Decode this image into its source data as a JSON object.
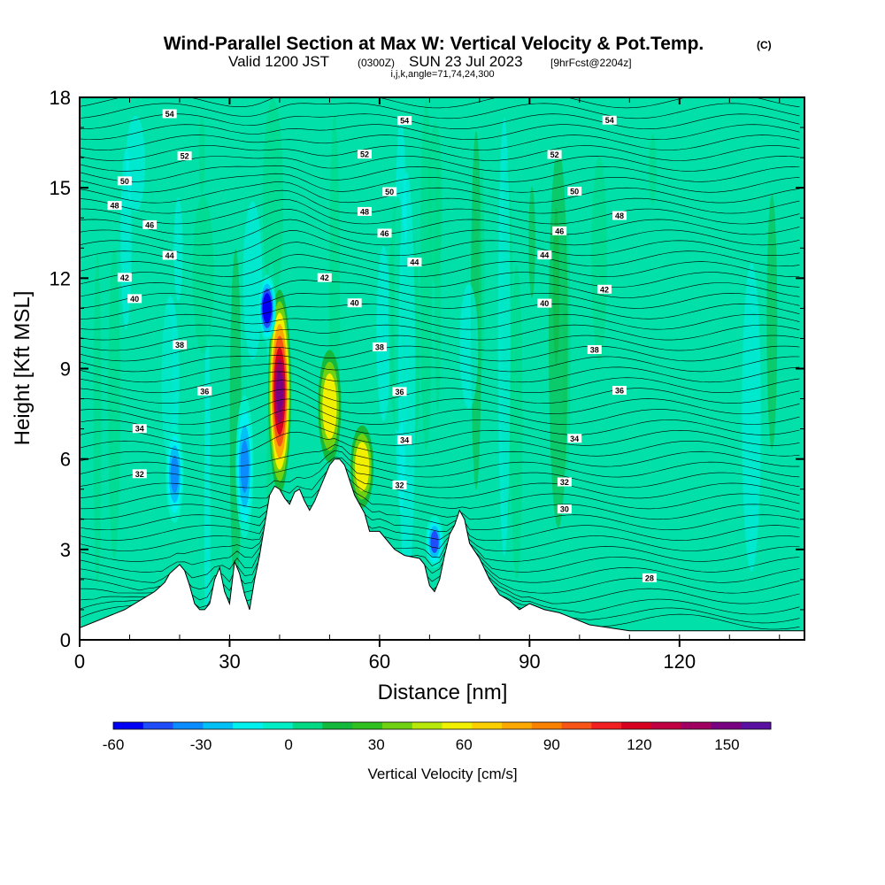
{
  "chart_data": {
    "type": "heatmap",
    "title": "Wind-Parallel Section at Max W: Vertical Velocity & Pot.Temp.",
    "title_mark": "(C)",
    "subtitle": {
      "valid": "Valid 1200 JST",
      "utc": "(0300Z)",
      "date": "SUN 23 Jul 2023",
      "forecast": "[9hrFcst@2204z]"
    },
    "params_line": "i,j,k,angle=71,74,24,300",
    "xlabel": "Distance [nm]",
    "ylabel": "Height [Kft MSL]",
    "xlim": [
      0,
      145
    ],
    "ylim": [
      0,
      18
    ],
    "x_ticks": [
      "0",
      "30",
      "60",
      "90",
      "120"
    ],
    "y_ticks": [
      "0",
      "3",
      "6",
      "9",
      "12",
      "15",
      "18"
    ],
    "colorbar": {
      "label": "Vertical Velocity [cm/s]",
      "range": [
        -60,
        165
      ],
      "ticks": [
        "-60",
        "-30",
        "0",
        "30",
        "60",
        "90",
        "120",
        "150"
      ],
      "colors": [
        "#0000f5",
        "#1f4dfb",
        "#0a8cff",
        "#00c0f5",
        "#00f0ee",
        "#00eec6",
        "#00d884",
        "#14b83a",
        "#30c020",
        "#70d012",
        "#b8e80a",
        "#f0f000",
        "#fcd000",
        "#fca800",
        "#fa8000",
        "#f85418",
        "#f22020",
        "#d80020",
        "#c00040",
        "#a00060",
        "#7a0082",
        "#5a10a0"
      ]
    },
    "theta_contours": [
      {
        "value": 28,
        "height_kft": 2.0
      },
      {
        "value": 30,
        "height_kft": 4.4
      },
      {
        "value": 32,
        "height_kft": 5.3
      },
      {
        "value": 34,
        "height_kft": 6.8
      },
      {
        "value": 36,
        "height_kft": 8.4
      },
      {
        "value": 38,
        "height_kft": 9.8
      },
      {
        "value": 40,
        "height_kft": 11.1
      },
      {
        "value": 42,
        "height_kft": 11.8
      },
      {
        "value": 44,
        "height_kft": 12.7
      },
      {
        "value": 46,
        "height_kft": 13.6
      },
      {
        "value": 48,
        "height_kft": 14.2
      },
      {
        "value": 50,
        "height_kft": 15.0
      },
      {
        "value": 52,
        "height_kft": 16.1
      },
      {
        "value": 54,
        "height_kft": 17.4
      }
    ],
    "terrain": {
      "distance_nm": [
        0,
        3,
        9,
        12,
        15,
        17,
        18,
        20,
        21,
        22,
        23,
        24,
        25,
        26,
        27,
        28,
        29,
        30,
        31,
        32,
        33,
        34,
        35,
        36,
        37,
        38,
        39,
        40,
        41,
        42,
        43,
        44,
        45,
        46,
        47,
        48,
        49,
        50,
        51,
        52,
        53,
        54,
        55,
        56,
        57,
        58,
        60,
        62,
        63,
        65,
        68,
        69,
        70,
        71,
        72,
        73,
        74,
        75,
        76,
        77,
        78,
        80,
        82,
        84,
        86,
        88,
        90,
        93,
        96,
        102,
        110,
        120,
        130,
        145
      ],
      "height_kft": [
        0.4,
        0.6,
        1.0,
        1.3,
        1.6,
        1.9,
        2.2,
        2.5,
        2.3,
        1.8,
        1.2,
        1.0,
        1.0,
        1.2,
        2.0,
        2.4,
        1.6,
        1.2,
        2.6,
        2.2,
        1.5,
        1.0,
        2.0,
        2.8,
        3.8,
        4.8,
        5.1,
        5.0,
        4.7,
        4.5,
        4.9,
        5.0,
        4.6,
        4.3,
        4.6,
        5.0,
        5.4,
        5.8,
        6.0,
        6.0,
        5.8,
        5.3,
        4.8,
        4.5,
        4.2,
        3.6,
        3.6,
        3.2,
        3.0,
        2.8,
        2.7,
        2.5,
        1.8,
        1.6,
        2.0,
        2.8,
        3.5,
        3.8,
        4.3,
        4.0,
        3.2,
        2.7,
        2.0,
        1.5,
        1.3,
        1.0,
        1.2,
        1.0,
        0.9,
        0.5,
        0.3,
        0.3,
        0.3,
        0.3
      ]
    },
    "features": [
      {
        "kind": "updraft",
        "center_nm": 40,
        "bottom_kft": 5.0,
        "top_kft": 11.5,
        "max_cms": 150
      },
      {
        "kind": "updraft",
        "center_nm": 50,
        "bottom_kft": 6.0,
        "top_kft": 9.5,
        "max_cms": 60
      },
      {
        "kind": "updraft",
        "center_nm": 56.5,
        "bottom_kft": 4.5,
        "top_kft": 7.0,
        "max_cms": 60
      },
      {
        "kind": "downdraft",
        "center_nm": 37.5,
        "bottom_kft": 10.0,
        "top_kft": 12.0,
        "min_cms": -55
      },
      {
        "kind": "downdraft",
        "center_nm": 33,
        "bottom_kft": 3.5,
        "top_kft": 8.0,
        "min_cms": -30
      },
      {
        "kind": "downdraft",
        "center_nm": 19,
        "bottom_kft": 4.0,
        "top_kft": 7.0,
        "min_cms": -35
      },
      {
        "kind": "downdraft",
        "center_nm": 71,
        "bottom_kft": 2.5,
        "top_kft": 4.0,
        "min_cms": -40
      }
    ]
  }
}
